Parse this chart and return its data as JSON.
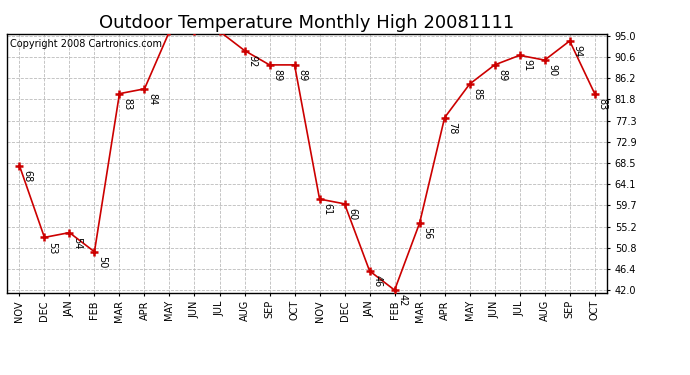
{
  "title": "Outdoor Temperature Monthly High 20081111",
  "copyright_text": "Copyright 2008 Cartronics.com",
  "months": [
    "NOV",
    "DEC",
    "JAN",
    "FEB",
    "MAR",
    "APR",
    "MAY",
    "JUN",
    "JUL",
    "AUG",
    "SEP",
    "OCT",
    "NOV",
    "DEC",
    "JAN",
    "FEB",
    "MAR",
    "APR",
    "MAY",
    "JUN",
    "JUL",
    "AUG",
    "SEP",
    "OCT"
  ],
  "values": [
    68,
    53,
    54,
    50,
    83,
    84,
    96,
    96,
    96,
    92,
    89,
    89,
    61,
    60,
    46,
    42,
    56,
    78,
    85,
    89,
    91,
    90,
    94,
    83
  ],
  "ylim_min": 42.0,
  "ylim_max": 95.0,
  "yticks": [
    42.0,
    46.4,
    50.8,
    55.2,
    59.7,
    64.1,
    68.5,
    72.9,
    77.3,
    81.8,
    86.2,
    90.6,
    95.0
  ],
  "ytick_labels": [
    "42.0",
    "46.4",
    "50.8",
    "55.2",
    "59.7",
    "64.1",
    "68.5",
    "72.9",
    "77.3",
    "81.8",
    "86.2",
    "90.6",
    "95.0"
  ],
  "line_color": "#cc0000",
  "marker_color": "#cc0000",
  "bg_color": "#ffffff",
  "grid_color": "#bbbbbb",
  "title_fontsize": 13,
  "annot_fontsize": 7,
  "tick_fontsize": 7,
  "copyright_fontsize": 7
}
